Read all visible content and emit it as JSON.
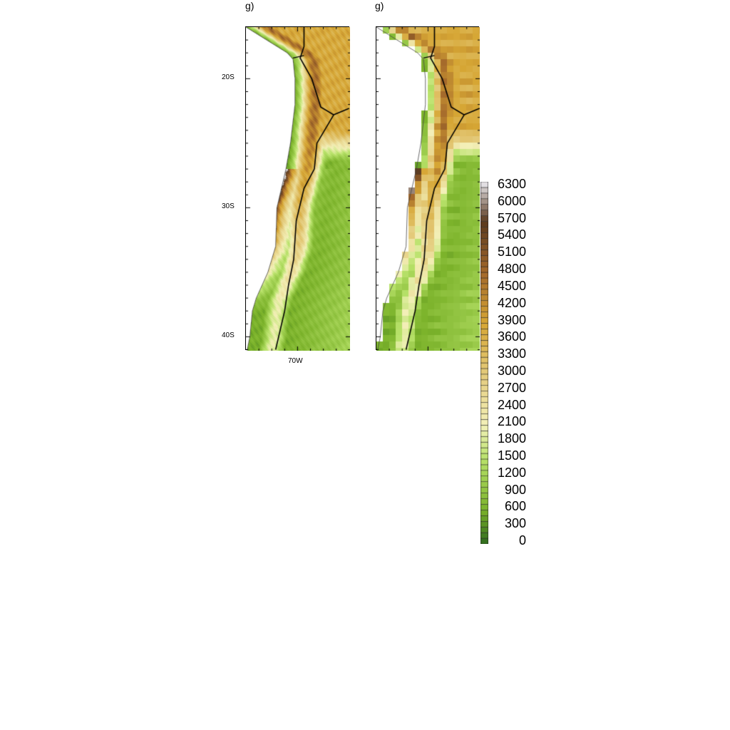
{
  "panels": [
    {
      "title": "g)",
      "style": "high-resolution topography"
    },
    {
      "title": "g)",
      "style": "coarse gridded topography"
    }
  ],
  "map": {
    "region": "Chile / central Andes",
    "lon_range": [
      -74,
      -66
    ],
    "lat_range": [
      -41,
      -16
    ],
    "lat_ticks": [
      {
        "value": -20,
        "label": "20S"
      },
      {
        "value": -30,
        "label": "30S"
      },
      {
        "value": -40,
        "label": "40S"
      }
    ],
    "lon_ticks": [
      {
        "value": -70,
        "label": "70W"
      }
    ],
    "boundaries": "black country borders"
  },
  "colorbar": {
    "min": 0,
    "max": 6400,
    "interval": 100,
    "labels": [
      "6300",
      "6000",
      "5700",
      "5400",
      "5100",
      "4800",
      "4500",
      "4200",
      "3900",
      "3600",
      "3300",
      "3000",
      "2700",
      "2400",
      "2100",
      "1800",
      "1500",
      "1200",
      "900",
      "600",
      "300",
      "0"
    ],
    "colors": {
      "0": "#2f6a1e",
      "600": "#7bb22a",
      "1500": "#b8e26a",
      "2100": "#f3f0b8",
      "3000": "#e4cb7c",
      "3900": "#d6a634",
      "4800": "#a4692b",
      "5700": "#5b391d",
      "6400": "#ececf2"
    }
  }
}
